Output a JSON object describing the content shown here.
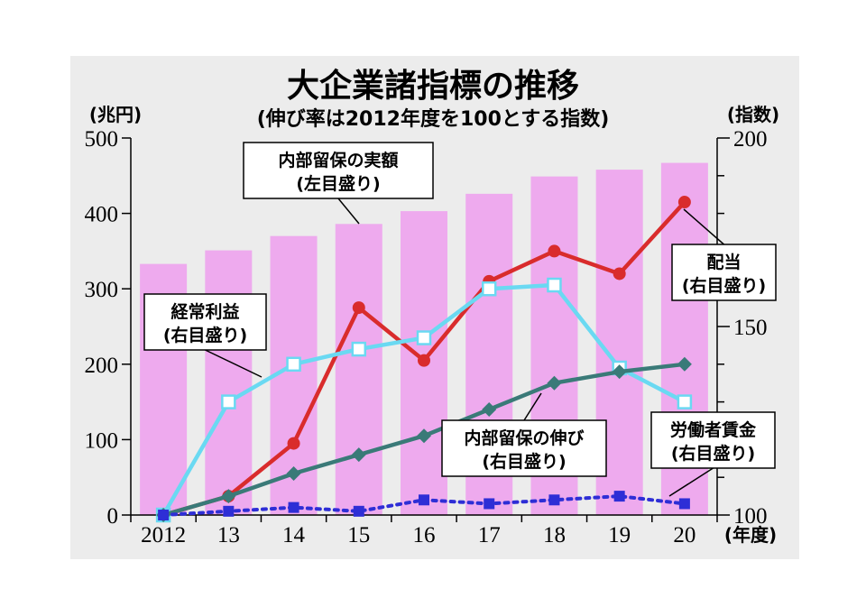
{
  "chart_data": {
    "type": "bar",
    "title": "大企業諸指標の推移",
    "subtitle": "(伸び率は2012年度を100とする指数)",
    "categories": [
      "2012",
      "13",
      "14",
      "15",
      "16",
      "17",
      "18",
      "19",
      "20"
    ],
    "x_unit": "(年度)",
    "y_left": {
      "label": "(兆円)",
      "range": [
        0,
        500
      ],
      "ticks": [
        0,
        100,
        200,
        300,
        400,
        500
      ]
    },
    "y_right": {
      "label": "(指数)",
      "range": [
        100,
        200
      ],
      "ticks": [
        100,
        150,
        200
      ]
    },
    "grid": false,
    "series": [
      {
        "name": "内部留保の実額",
        "type": "bar",
        "axis": "left",
        "color": "#eeaaee",
        "values": [
          333,
          351,
          370,
          386,
          403,
          426,
          449,
          458,
          467
        ],
        "label_lines": [
          "内部留保の実額",
          "(左目盛り)"
        ]
      },
      {
        "name": "配当",
        "type": "line",
        "axis": "right",
        "color": "#d92c2c",
        "marker": "circle",
        "values": [
          100,
          105,
          119,
          155,
          141,
          162,
          170,
          164,
          183
        ],
        "label_lines": [
          "配当",
          "(右目盛り)"
        ]
      },
      {
        "name": "経常利益",
        "type": "line",
        "axis": "right",
        "color": "#6ad9f2",
        "marker": "square",
        "values": [
          100,
          130,
          140,
          144,
          147,
          160,
          161,
          139,
          130
        ],
        "label_lines": [
          "経常利益",
          "(右目盛り)"
        ]
      },
      {
        "name": "内部留保の伸び",
        "type": "line",
        "axis": "right",
        "color": "#3a7a78",
        "marker": "diamond",
        "values": [
          100,
          105,
          111,
          116,
          121,
          128,
          135,
          138,
          140
        ],
        "label_lines": [
          "内部留保の伸び",
          "(右目盛り)"
        ]
      },
      {
        "name": "労働者賃金",
        "type": "line",
        "axis": "right",
        "color": "#2e2ed6",
        "marker": "square-dotted",
        "values": [
          100,
          101,
          102,
          101,
          104,
          103,
          104,
          105,
          103
        ],
        "label_lines": [
          "労働者賃金",
          "(右目盛り)"
        ]
      }
    ]
  }
}
